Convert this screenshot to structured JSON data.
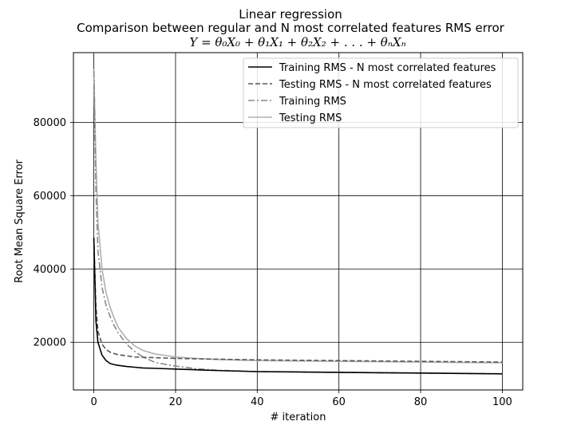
{
  "chart_data": {
    "type": "line",
    "title_lines": [
      "Linear regression",
      "Comparison between regular and N most correlated features RMS error"
    ],
    "formula": "Y = θ₀X₀ + θ₁X₁ + θ₂X₂ + . . . + θₙXₙ",
    "xlabel": "# iteration",
    "ylabel": "Root Mean Square Error",
    "xlim": [
      -5,
      105
    ],
    "ylim": [
      7000,
      99000
    ],
    "xticks": [
      0,
      20,
      40,
      60,
      80,
      100
    ],
    "yticks": [
      20000,
      40000,
      60000,
      80000
    ],
    "grid": true,
    "legend_position": "upper right",
    "x": [
      0,
      0.5,
      1,
      2,
      3,
      4,
      5,
      6,
      8,
      10,
      12,
      15,
      20,
      25,
      30,
      40,
      50,
      60,
      70,
      80,
      90,
      100
    ],
    "series": [
      {
        "name": "Training RMS - N most correlated features",
        "color": "#000000",
        "style": "solid",
        "values": [
          48500,
          26000,
          20000,
          16500,
          15000,
          14200,
          13900,
          13700,
          13400,
          13200,
          13000,
          12900,
          12700,
          12500,
          12300,
          12000,
          11900,
          11800,
          11700,
          11600,
          11500,
          11400
        ]
      },
      {
        "name": "Testing RMS - N most correlated features",
        "color": "#555555",
        "style": "dashed",
        "values": [
          48500,
          30000,
          23000,
          19500,
          18000,
          17300,
          16900,
          16600,
          16300,
          16000,
          15900,
          15800,
          15600,
          15500,
          15400,
          15200,
          15100,
          15000,
          14900,
          14800,
          14700,
          14600
        ]
      },
      {
        "name": "Training RMS",
        "color": "#888888",
        "style": "dashdot",
        "values": [
          94000,
          62000,
          45000,
          35000,
          30000,
          27000,
          24500,
          22500,
          19500,
          17500,
          16000,
          14500,
          13500,
          12800,
          12400,
          12000,
          11900,
          11800,
          11700,
          11600,
          11500,
          11400
        ]
      },
      {
        "name": "Testing RMS",
        "color": "#b0b0b0",
        "style": "solid",
        "values": [
          94500,
          70000,
          53000,
          40000,
          33500,
          29500,
          26500,
          24000,
          21000,
          19000,
          17800,
          16800,
          16000,
          15600,
          15300,
          15000,
          14900,
          14800,
          14700,
          14600,
          14500,
          14400
        ]
      }
    ]
  }
}
